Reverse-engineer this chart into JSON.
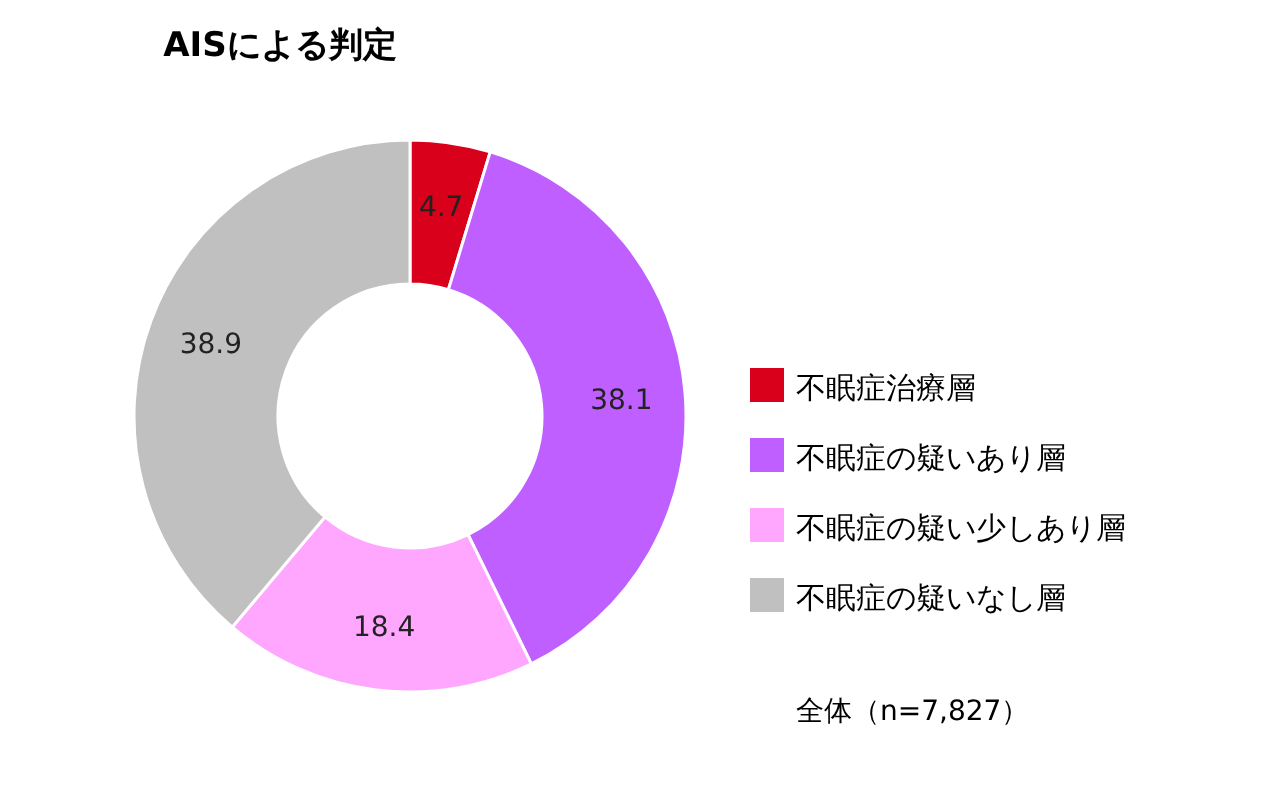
{
  "chart_data": {
    "type": "donut",
    "title": "AISによる判定",
    "categories": [
      "不眠症治療層",
      "不眠症の疑いあり層",
      "不眠症の疑い少しあり層",
      "不眠症の疑いなし層"
    ],
    "values": [
      4.7,
      38.1,
      18.4,
      38.9
    ],
    "colors": [
      "#d9001b",
      "#bf5fff",
      "#ffa6ff",
      "#c0c0c0"
    ],
    "data_labels": true,
    "legend": "right",
    "annotations": [
      "全体（n=7,827）"
    ]
  }
}
